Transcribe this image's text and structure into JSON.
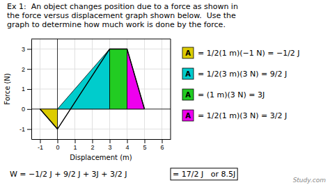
{
  "chart_data": {
    "type": "line",
    "title": "Ex 1:  An object changes position due to a force as shown in\nthe force versus displacement graph shown below.  Use the\ngraph to determine how much work is done by the force.",
    "x_label": "Displacement (m)",
    "y_label": "Force (N)",
    "xlim": [
      -1.5,
      6.5
    ],
    "ylim": [
      -1.5,
      3.5
    ],
    "xticks": [
      -1,
      0,
      1,
      2,
      3,
      4,
      5,
      6
    ],
    "yticks": [
      -1,
      0,
      1,
      2,
      3
    ],
    "grid": true,
    "series": [
      {
        "type": "area",
        "color": "#ddcc00",
        "x": [
          -1,
          0
        ],
        "values": [
          0,
          -1
        ]
      },
      {
        "type": "area",
        "color": "#00cccc",
        "x": [
          0,
          3
        ],
        "values": [
          0,
          3
        ]
      },
      {
        "type": "area",
        "color": "#22cc22",
        "x": [
          3,
          4
        ],
        "values": [
          3,
          3
        ]
      },
      {
        "type": "area",
        "color": "#ee00ee",
        "x": [
          4,
          5
        ],
        "values": [
          3,
          0
        ]
      },
      {
        "type": "line",
        "color": "#000000",
        "x": [
          -1,
          0,
          3,
          4,
          5
        ],
        "values": [
          0,
          -1,
          3,
          3,
          0
        ]
      }
    ],
    "annotations": [
      {
        "label": "A",
        "color": "#ddcc00",
        "text": "= 1/2(1 m)(−1 N) = −1/2 J"
      },
      {
        "label": "A",
        "color": "#00cccc",
        "text": "= 1/2(3 m)(3 N) = 9/2 J"
      },
      {
        "label": "A",
        "color": "#22cc22",
        "text": "= (1 m)(3 N) = 3J"
      },
      {
        "label": "A",
        "color": "#ee00ee",
        "text": "= 1/2(1 m)(3 N) = 3/2 J"
      }
    ],
    "total": {
      "text": "W = −1/2 J + 9/2 J + 3J + 3/2 J",
      "result": "= 17/2 J   or 8.5J"
    },
    "watermark": "Study.com"
  }
}
